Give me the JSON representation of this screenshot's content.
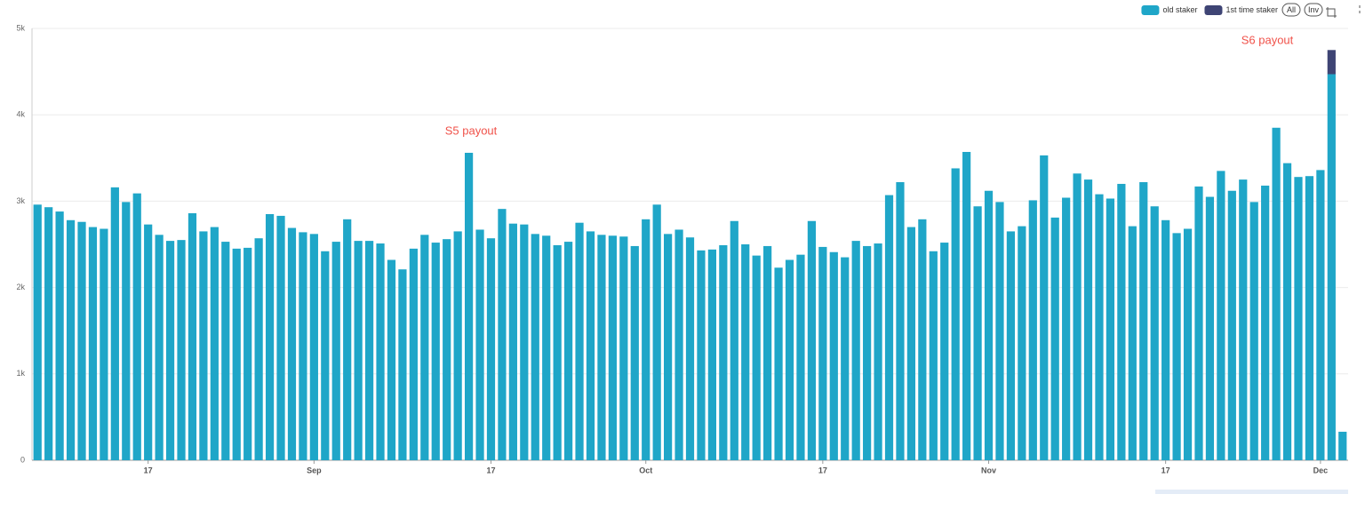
{
  "chart_data": {
    "type": "stacked-bar",
    "categories": [
      null,
      null,
      null,
      null,
      null,
      null,
      null,
      null,
      null,
      null,
      "17",
      null,
      null,
      null,
      null,
      null,
      null,
      null,
      null,
      null,
      null,
      null,
      null,
      null,
      null,
      "Sep",
      null,
      null,
      null,
      null,
      null,
      null,
      null,
      null,
      null,
      null,
      null,
      null,
      null,
      null,
      null,
      "17",
      null,
      null,
      null,
      null,
      null,
      null,
      null,
      null,
      null,
      null,
      null,
      null,
      null,
      "Oct",
      null,
      null,
      null,
      null,
      null,
      null,
      null,
      null,
      null,
      null,
      null,
      null,
      null,
      null,
      null,
      "17",
      null,
      null,
      null,
      null,
      null,
      null,
      null,
      null,
      null,
      null,
      null,
      null,
      null,
      null,
      "Nov",
      null,
      null,
      null,
      null,
      null,
      null,
      null,
      null,
      null,
      null,
      null,
      null,
      null,
      null,
      null,
      "17",
      null,
      null,
      null,
      null,
      null,
      null,
      null,
      null,
      null,
      null,
      null,
      null,
      null,
      "Dec",
      null,
      null
    ],
    "series": [
      {
        "name": "old staker",
        "color": "#1fa6c8",
        "values": [
          2960,
          2930,
          2880,
          2780,
          2760,
          2700,
          2680,
          3160,
          2990,
          3090,
          2730,
          2610,
          2540,
          2550,
          2860,
          2650,
          2700,
          2530,
          2450,
          2460,
          2570,
          2850,
          2830,
          2690,
          2640,
          2620,
          2420,
          2530,
          2790,
          2540,
          2540,
          2510,
          2320,
          2210,
          2450,
          2610,
          2520,
          2560,
          2650,
          3560,
          2670,
          2570,
          2910,
          2740,
          2730,
          2620,
          2600,
          2490,
          2530,
          2750,
          2650,
          2610,
          2600,
          2590,
          2480,
          2790,
          2960,
          2620,
          2670,
          2580,
          2430,
          2440,
          2490,
          2770,
          2500,
          2370,
          2480,
          2230,
          2320,
          2380,
          2770,
          2470,
          2410,
          2350,
          2540,
          2480,
          2510,
          3070,
          3220,
          2700,
          2790,
          2420,
          2520,
          3380,
          3570,
          2940,
          3120,
          2990,
          2650,
          2710,
          3010,
          3530,
          2810,
          3040,
          3320,
          3250,
          3080,
          3030,
          3200,
          2710,
          3220,
          2940,
          2780,
          2630,
          2680,
          3170,
          3050,
          3350,
          3120,
          3250,
          2990,
          3180,
          3850,
          3440,
          3280,
          3290,
          3360,
          4470,
          330
        ]
      },
      {
        "name": "1st time staker",
        "color": "#3e4474",
        "values": [
          0,
          0,
          0,
          0,
          0,
          0,
          0,
          0,
          0,
          0,
          0,
          0,
          0,
          0,
          0,
          0,
          0,
          0,
          0,
          0,
          0,
          0,
          0,
          0,
          0,
          0,
          0,
          0,
          0,
          0,
          0,
          0,
          0,
          0,
          0,
          0,
          0,
          0,
          0,
          0,
          0,
          0,
          0,
          0,
          0,
          0,
          0,
          0,
          0,
          0,
          0,
          0,
          0,
          0,
          0,
          0,
          0,
          0,
          0,
          0,
          0,
          0,
          0,
          0,
          0,
          0,
          0,
          0,
          0,
          0,
          0,
          0,
          0,
          0,
          0,
          0,
          0,
          0,
          0,
          0,
          0,
          0,
          0,
          0,
          0,
          0,
          0,
          0,
          0,
          0,
          0,
          0,
          0,
          0,
          0,
          0,
          0,
          0,
          0,
          0,
          0,
          0,
          0,
          0,
          0,
          0,
          0,
          0,
          0,
          0,
          0,
          0,
          0,
          0,
          0,
          0,
          0,
          280,
          0
        ]
      }
    ],
    "ylim": [
      0,
      5000
    ],
    "yticks": [
      0,
      {
        "value": 1000,
        "label": "1k"
      },
      {
        "value": 2000,
        "label": "2k"
      },
      {
        "value": 3000,
        "label": "3k"
      },
      {
        "value": 4000,
        "label": "4k"
      },
      {
        "value": 5000,
        "label": "5k"
      }
    ],
    "grid": true,
    "legend": "top-right",
    "legend_buttons": [
      "All",
      "Inv"
    ],
    "annotations": [
      {
        "text": "S5 payout"
      },
      {
        "text": "S6 payout"
      }
    ]
  }
}
